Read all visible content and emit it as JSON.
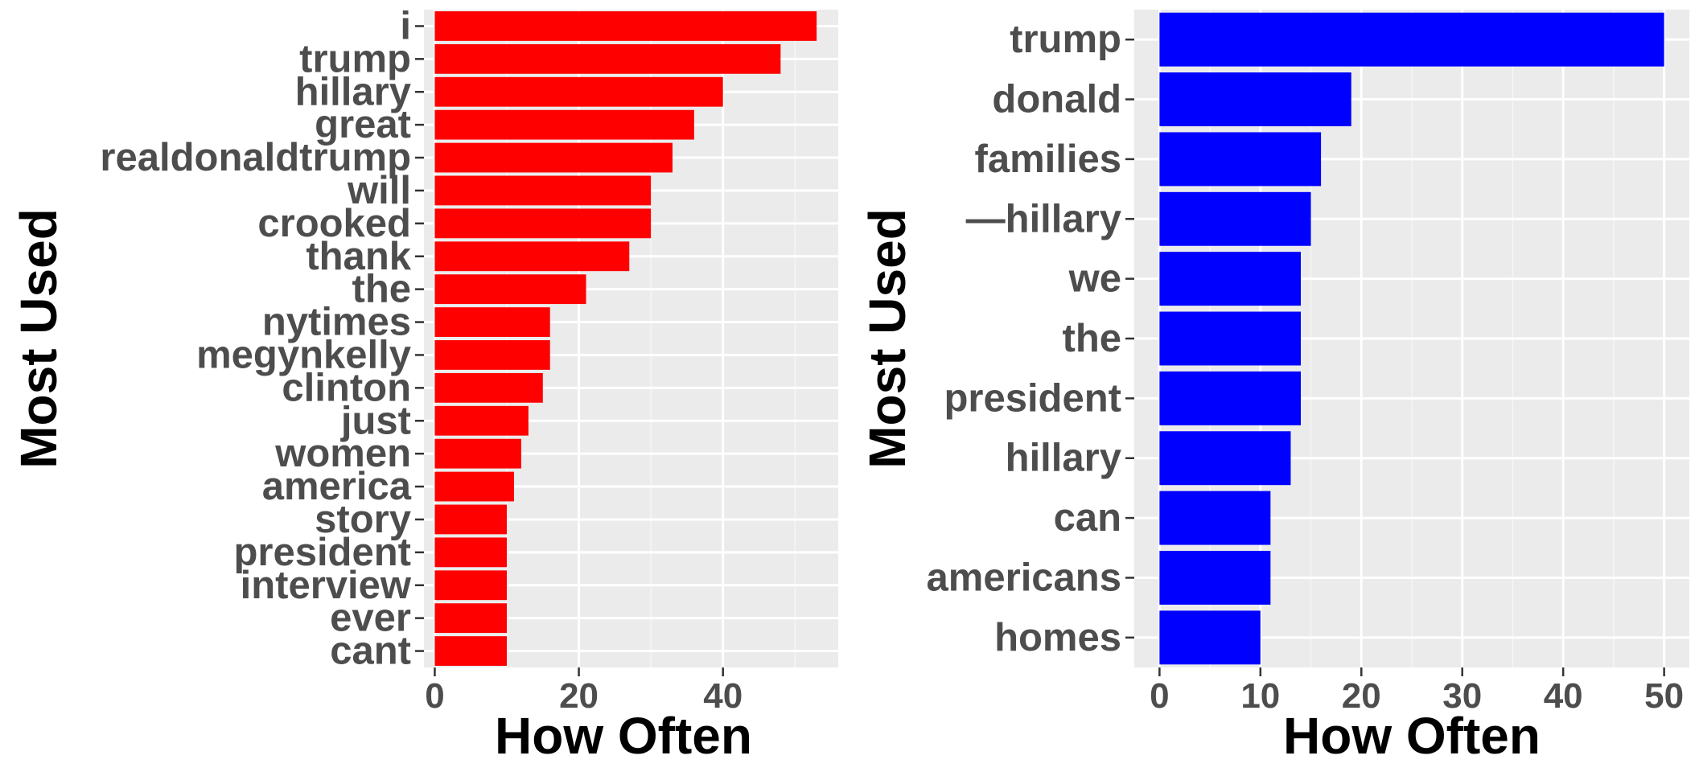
{
  "chart_data": [
    {
      "type": "bar",
      "orientation": "horizontal",
      "categories": [
        "i",
        "trump",
        "hillary",
        "great",
        "realdonaldtrump",
        "will",
        "crooked",
        "thank",
        "the",
        "nytimes",
        "megynkelly",
        "clinton",
        "just",
        "women",
        "america",
        "story",
        "president",
        "interview",
        "ever",
        "cant"
      ],
      "values": [
        53,
        48,
        40,
        36,
        33,
        30,
        30,
        27,
        21,
        16,
        16,
        15,
        13,
        12,
        11,
        10,
        10,
        10,
        10,
        10
      ],
      "xlabel": "How Often",
      "ylabel": "Most Used",
      "xlim": [
        -1.5,
        56
      ],
      "xticks": [
        0,
        20,
        40
      ],
      "bar_color": "#ff0000",
      "grid": true
    },
    {
      "type": "bar",
      "orientation": "horizontal",
      "categories": [
        "trump",
        "donald",
        "families",
        "—hillary",
        "we",
        "the",
        "president",
        "hillary",
        "can",
        "americans",
        "homes"
      ],
      "values": [
        50,
        19,
        16,
        15,
        14,
        14,
        14,
        13,
        11,
        11,
        10
      ],
      "xlabel": "How Often",
      "ylabel": "Most Used",
      "xlim": [
        -2.5,
        52.5
      ],
      "xticks": [
        0,
        10,
        20,
        30,
        40,
        50
      ],
      "bar_color": "#0000ff",
      "grid": true
    }
  ]
}
